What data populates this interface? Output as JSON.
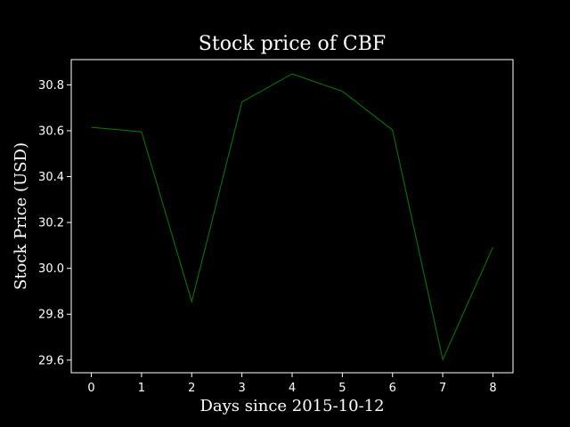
{
  "chart_data": {
    "type": "line",
    "title": "Stock price of CBF",
    "xlabel": "Days since 2015-10-12",
    "ylabel": "Stock Price (USD)",
    "xlim": [
      -0.4,
      8.4
    ],
    "ylim": [
      29.545,
      30.91
    ],
    "xticks": [
      0,
      1,
      2,
      3,
      4,
      5,
      6,
      7,
      8
    ],
    "yticks": [
      29.6,
      29.8,
      30.0,
      30.2,
      30.4,
      30.6,
      30.8
    ],
    "xtick_labels": [
      "0",
      "1",
      "2",
      "3",
      "4",
      "5",
      "6",
      "7",
      "8"
    ],
    "ytick_labels": [
      "29.6",
      "29.8",
      "30.0",
      "30.2",
      "30.4",
      "30.6",
      "30.8"
    ],
    "grid": false,
    "background": "#000000",
    "foreground": "#ffffff",
    "series": [
      {
        "color": "#008000",
        "x": [
          0,
          1,
          2,
          3,
          4,
          5,
          6,
          7,
          8
        ],
        "y": [
          30.615,
          30.595,
          29.855,
          30.725,
          30.848,
          30.772,
          30.603,
          29.602,
          30.093
        ]
      }
    ]
  }
}
